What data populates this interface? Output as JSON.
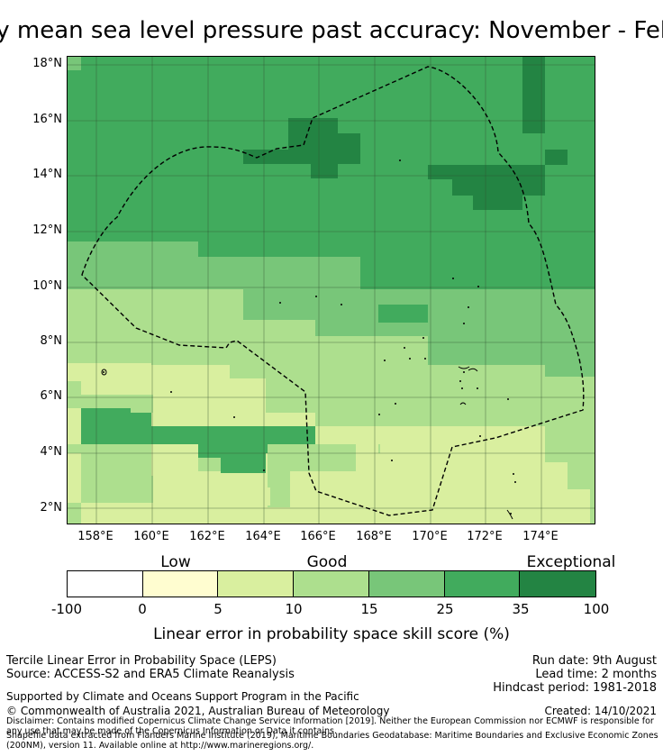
{
  "title": "ly mean sea level pressure past accuracy: November - Feb",
  "map": {
    "lat_labels": [
      "18°N",
      "16°N",
      "14°N",
      "12°N",
      "10°N",
      "8°N",
      "6°N",
      "4°N",
      "2°N"
    ],
    "lon_labels": [
      "158°E",
      "160°E",
      "162°E",
      "164°E",
      "166°E",
      "168°E",
      "170°E",
      "172°E",
      "174°E"
    ],
    "colors": {
      "c0": "#ffffff",
      "c1": "#fffdd0",
      "c2": "#d9ef9f",
      "c3": "#addf8e",
      "c4": "#78c679",
      "c5": "#41ab5d",
      "c6": "#238443"
    }
  },
  "colorbar": {
    "categories": [
      "Low",
      "Good",
      "Exceptional"
    ],
    "ticks": [
      "-100",
      "0",
      "5",
      "10",
      "15",
      "25",
      "35",
      "100"
    ],
    "label": "Linear error in probability space skill score (%)"
  },
  "info": {
    "left1": "Tercile Linear Error in Probability Space (LEPS)",
    "left2": "Source: ACCESS-S2 and ERA5 Climate Reanalysis",
    "left3": "Supported by Climate and Oceans Support Program in the Pacific",
    "left4": "© Commonwealth of Australia 2021, Australian Bureau of Meteorology",
    "right1": "Run date: 9th August",
    "right2": "Lead time: 2 months",
    "right3": "Hindcast period: 1981-2018",
    "right4": "Created: 14/10/2021",
    "disclaimer": "Disclaimer: Contains modified Copernicus Climate Change Service Information [2019]. Neither the European Commission nor ECMWF is responsible for any use that may be made of the Copernicus Information or Data it contains.",
    "shapefile": "Shapefile data extracted from Flanders Marine Institute (2019), Maritime Boundaries Geodatabase: Maritime Boundaries and Exclusive Economic Zones (200NM), version 11. Available online at http://www.marineregions.org/."
  }
}
